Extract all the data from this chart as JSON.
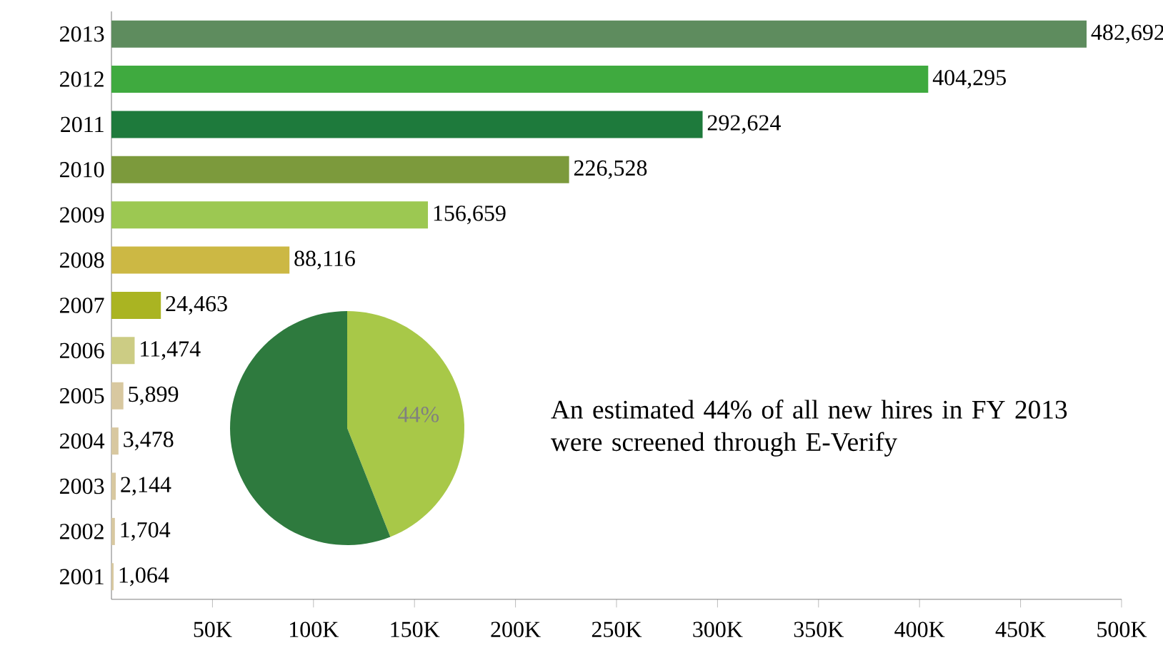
{
  "chart_data": [
    {
      "type": "bar",
      "orientation": "horizontal",
      "categories": [
        "2013",
        "2012",
        "2011",
        "2010",
        "2009",
        "2008",
        "2007",
        "2006",
        "2005",
        "2004",
        "2003",
        "2002",
        "2001"
      ],
      "values": [
        482692,
        404295,
        292624,
        226528,
        156659,
        88116,
        24463,
        11474,
        5899,
        3478,
        2144,
        1704,
        1064
      ],
      "colors": [
        "#5e8c5e",
        "#3faa3f",
        "#1e7a3c",
        "#7c9a3c",
        "#9cc852",
        "#ccb844",
        "#aab422",
        "#cccc84",
        "#d8c8a0",
        "#d8c8a0",
        "#d8c8a0",
        "#d8c8a0",
        "#d8c8a0"
      ],
      "value_labels": [
        "482,692",
        "404,295",
        "292,624",
        "226,528",
        "156,659",
        "88,116",
        "24,463",
        "11,474",
        "5,899",
        "3,478",
        "2,144",
        "1,704",
        "1,064"
      ],
      "xlim": [
        0,
        500000
      ],
      "xticks": [
        {
          "value": 50000,
          "label": "50K"
        },
        {
          "value": 100000,
          "label": "100K"
        },
        {
          "value": 150000,
          "label": "150K"
        },
        {
          "value": 200000,
          "label": "200K"
        },
        {
          "value": 250000,
          "label": "250K"
        },
        {
          "value": 300000,
          "label": "300K"
        },
        {
          "value": 350000,
          "label": "350K"
        },
        {
          "value": 400000,
          "label": "400K"
        },
        {
          "value": 450000,
          "label": "450K"
        },
        {
          "value": 500000,
          "label": "500K"
        }
      ]
    },
    {
      "type": "pie",
      "categories": [
        null,
        null
      ],
      "values": [
        44,
        56
      ],
      "colors": [
        "#a8c848",
        "#2e7a3e"
      ],
      "value_labels": [
        "44%",
        null
      ],
      "annotations": [
        "An estimated 44% of all new hires in FY 2013 were screened through E-Verify"
      ]
    }
  ]
}
